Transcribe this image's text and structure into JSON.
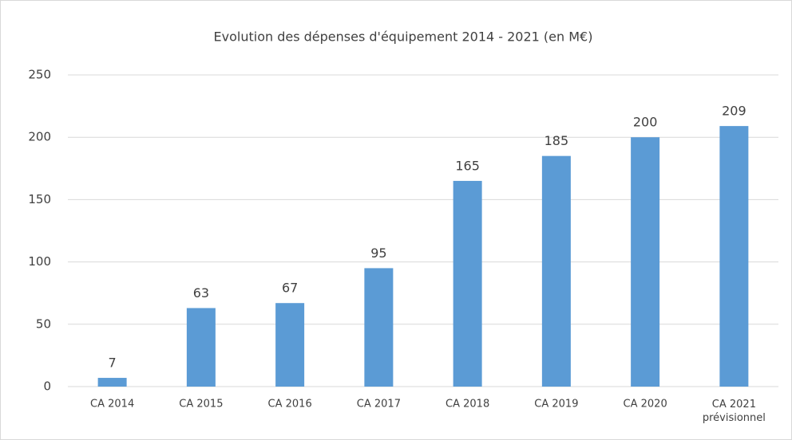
{
  "chart_data": {
    "type": "bar",
    "title": "Evolution des dépenses d'équipement 2014 - 2021 (en M€)",
    "categories": [
      "CA 2014",
      "CA 2015",
      "CA 2016",
      "CA 2017",
      "CA 2018",
      "CA 2019",
      "CA 2020",
      "CA 2021\nprévisionnel"
    ],
    "values": [
      7,
      63,
      67,
      95,
      165,
      185,
      200,
      209
    ],
    "color": "#5b9bd5",
    "ylim": [
      0,
      250
    ],
    "yticks": [
      0,
      50,
      100,
      150,
      200,
      250
    ],
    "grid": true,
    "data_labels": true
  }
}
